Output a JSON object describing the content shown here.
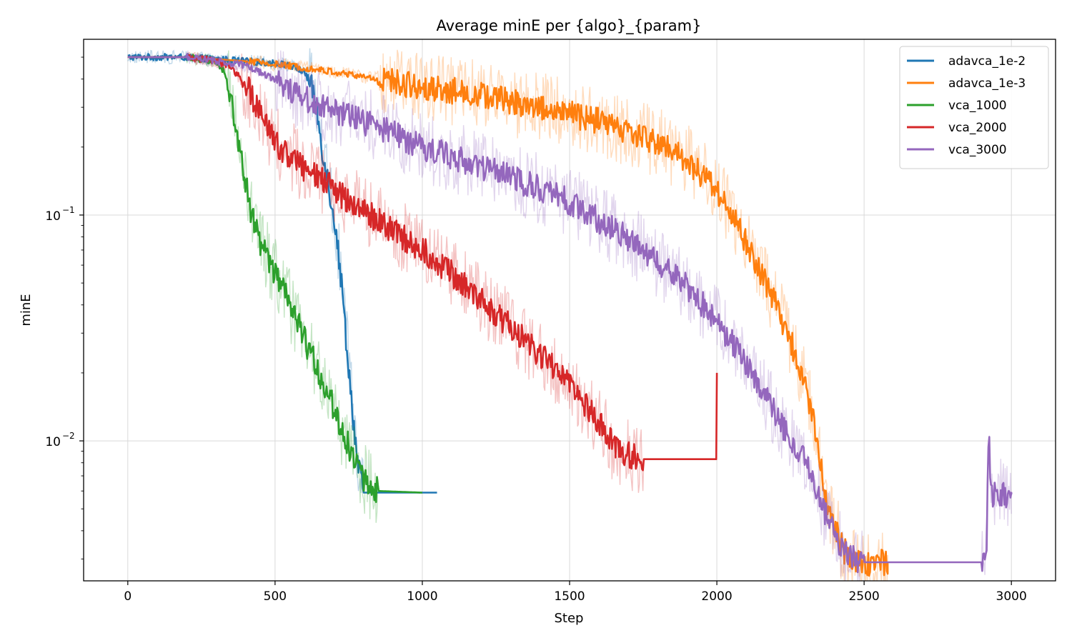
{
  "chart_data": {
    "type": "line",
    "title": "Average minE per {algo}_{param}",
    "xlabel": "Step",
    "ylabel": "minE",
    "xlim": [
      -150,
      3150
    ],
    "ylim": [
      0.0024,
      0.6
    ],
    "yscale": "log",
    "grid": true,
    "legend_position": "top-right",
    "xticks": [
      0,
      500,
      1000,
      1500,
      2000,
      2500,
      3000
    ],
    "xtick_labels": [
      "0",
      "500",
      "1000",
      "1500",
      "2000",
      "2500",
      "3000"
    ],
    "yticks": [
      0.1,
      0.01
    ],
    "ytick_labels": [
      {
        "base": "10",
        "exp": "−1"
      },
      {
        "base": "10",
        "exp": "−2"
      }
    ],
    "series": [
      {
        "name": "adavca_1e-2",
        "color": "#1f77b4",
        "points": [
          [
            0,
            0.5
          ],
          [
            100,
            0.5
          ],
          [
            200,
            0.5
          ],
          [
            300,
            0.49
          ],
          [
            400,
            0.48
          ],
          [
            500,
            0.47
          ],
          [
            550,
            0.46
          ],
          [
            600,
            0.43
          ],
          [
            620,
            0.38
          ],
          [
            640,
            0.3
          ],
          [
            660,
            0.2
          ],
          [
            680,
            0.14
          ],
          [
            700,
            0.1
          ],
          [
            720,
            0.06
          ],
          [
            740,
            0.03
          ],
          [
            760,
            0.015
          ],
          [
            780,
            0.008
          ],
          [
            800,
            0.0059
          ],
          [
            1050,
            0.0059
          ]
        ]
      },
      {
        "name": "adavca_1e-3",
        "color": "#ff7f0e",
        "points": [
          [
            0,
            0.5
          ],
          [
            200,
            0.5
          ],
          [
            400,
            0.48
          ],
          [
            600,
            0.45
          ],
          [
            800,
            0.41
          ],
          [
            1000,
            0.37
          ],
          [
            1200,
            0.34
          ],
          [
            1400,
            0.3
          ],
          [
            1600,
            0.26
          ],
          [
            1800,
            0.21
          ],
          [
            1900,
            0.175
          ],
          [
            2000,
            0.13
          ],
          [
            2050,
            0.1
          ],
          [
            2100,
            0.075
          ],
          [
            2150,
            0.055
          ],
          [
            2200,
            0.04
          ],
          [
            2250,
            0.028
          ],
          [
            2300,
            0.018
          ],
          [
            2330,
            0.012
          ],
          [
            2350,
            0.008
          ],
          [
            2380,
            0.005
          ],
          [
            2420,
            0.0035
          ],
          [
            2450,
            0.003
          ],
          [
            2500,
            0.0029
          ],
          [
            2580,
            0.0029
          ]
        ]
      },
      {
        "name": "vca_1000",
        "color": "#2ca02c",
        "points": [
          [
            0,
            0.5
          ],
          [
            200,
            0.5
          ],
          [
            300,
            0.48
          ],
          [
            330,
            0.43
          ],
          [
            350,
            0.34
          ],
          [
            370,
            0.22
          ],
          [
            400,
            0.14
          ],
          [
            420,
            0.1
          ],
          [
            450,
            0.075
          ],
          [
            500,
            0.055
          ],
          [
            550,
            0.04
          ],
          [
            600,
            0.028
          ],
          [
            650,
            0.02
          ],
          [
            700,
            0.014
          ],
          [
            740,
            0.01
          ],
          [
            770,
            0.0085
          ],
          [
            800,
            0.0068
          ],
          [
            850,
            0.006
          ],
          [
            1000,
            0.0059
          ]
        ]
      },
      {
        "name": "vca_2000",
        "color": "#d62728",
        "points": [
          [
            0,
            0.5
          ],
          [
            200,
            0.5
          ],
          [
            300,
            0.48
          ],
          [
            350,
            0.45
          ],
          [
            400,
            0.38
          ],
          [
            450,
            0.28
          ],
          [
            500,
            0.21
          ],
          [
            600,
            0.16
          ],
          [
            700,
            0.13
          ],
          [
            800,
            0.105
          ],
          [
            900,
            0.085
          ],
          [
            1000,
            0.07
          ],
          [
            1100,
            0.055
          ],
          [
            1200,
            0.042
          ],
          [
            1300,
            0.032
          ],
          [
            1400,
            0.024
          ],
          [
            1500,
            0.018
          ],
          [
            1550,
            0.0145
          ],
          [
            1600,
            0.012
          ],
          [
            1650,
            0.0095
          ],
          [
            1700,
            0.0086
          ],
          [
            1750,
            0.0083
          ],
          [
            1998,
            0.0083
          ],
          [
            2000,
            0.02
          ]
        ]
      },
      {
        "name": "vca_3000",
        "color": "#9467bd",
        "points": [
          [
            0,
            0.5
          ],
          [
            200,
            0.5
          ],
          [
            400,
            0.46
          ],
          [
            500,
            0.4
          ],
          [
            600,
            0.33
          ],
          [
            700,
            0.29
          ],
          [
            800,
            0.26
          ],
          [
            900,
            0.23
          ],
          [
            1000,
            0.2
          ],
          [
            1200,
            0.165
          ],
          [
            1400,
            0.13
          ],
          [
            1500,
            0.115
          ],
          [
            1600,
            0.095
          ],
          [
            1700,
            0.078
          ],
          [
            1800,
            0.062
          ],
          [
            1900,
            0.048
          ],
          [
            2000,
            0.034
          ],
          [
            2100,
            0.022
          ],
          [
            2200,
            0.013
          ],
          [
            2300,
            0.008
          ],
          [
            2350,
            0.0055
          ],
          [
            2400,
            0.0038
          ],
          [
            2450,
            0.0031
          ],
          [
            2500,
            0.0029
          ],
          [
            2900,
            0.0029
          ],
          [
            2915,
            0.0031
          ],
          [
            2920,
            0.0075
          ],
          [
            2925,
            0.01
          ],
          [
            2930,
            0.0058
          ],
          [
            3000,
            0.0058
          ]
        ]
      }
    ]
  }
}
